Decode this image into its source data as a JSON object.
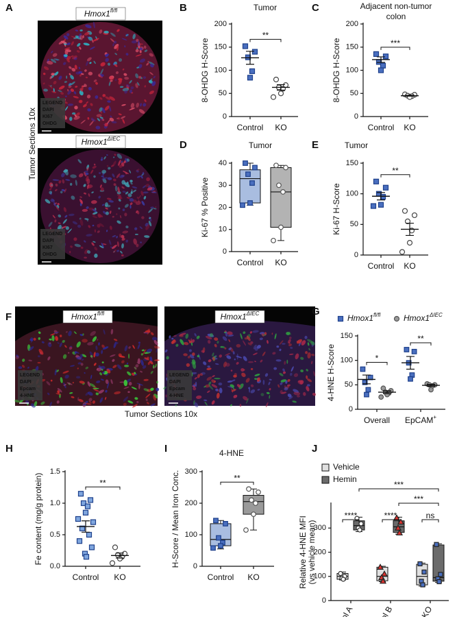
{
  "images": [
    {
      "panel": "A",
      "caption": "Tumor Sections 10x",
      "sections": [
        {
          "genotype": {
            "base": "Hmox1",
            "sup": "fl/fl"
          },
          "legend": [
            "LEGEND",
            "DAPI",
            "KI67",
            "OHDG"
          ],
          "legend_colors": [
            "#ffffff",
            "#3355ff",
            "#33dddd",
            "#ff3333"
          ]
        },
        {
          "genotype": {
            "base": "Hmox1",
            "sup": "ΔIEC"
          },
          "legend": [
            "LEGEND",
            "DAPI",
            "KI67",
            "OHDG"
          ],
          "legend_colors": [
            "#ffffff",
            "#3355ff",
            "#33dddd",
            "#ff3333"
          ]
        }
      ]
    },
    {
      "panel": "F",
      "caption": "Tumor Sections 10x",
      "sections": [
        {
          "genotype": {
            "base": "Hmox1",
            "sup": "fl/fl"
          },
          "legend": [
            "LEGEND",
            "DAPI",
            "Epcam",
            "4-HNE"
          ],
          "legend_colors": [
            "#ffffff",
            "#3355ff",
            "#33ee33",
            "#ff3333"
          ]
        },
        {
          "genotype": {
            "base": "Hmox1",
            "sup": "ΔIEC"
          },
          "legend": [
            "LEGEND",
            "DAPI",
            "Epcam",
            "4-HNE"
          ],
          "legend_colors": [
            "#ffffff",
            "#3355ff",
            "#33ee33",
            "#ff3333"
          ]
        }
      ]
    }
  ],
  "chart_data": [
    {
      "type": "dot",
      "panel": "B",
      "title": "Tumor",
      "ylabel": "8-OHDG H-Score",
      "categories": [
        "Control",
        "KO"
      ],
      "colors": [
        "#4a6fbf",
        "#9a9a9a"
      ],
      "markers": [
        "square",
        "circle"
      ],
      "points": [
        [
          152,
          140,
          128,
          98,
          84
        ],
        [
          80,
          68,
          63,
          60,
          50,
          42
        ]
      ],
      "means": [
        127,
        63
      ],
      "errors": [
        14,
        6
      ],
      "ylim": [
        0,
        200
      ],
      "yticks": [
        0,
        50,
        100,
        150,
        200
      ],
      "annotations": [
        {
          "text": "**",
          "between": [
            0,
            1
          ]
        }
      ]
    },
    {
      "type": "dot",
      "panel": "C",
      "title": [
        "Adjacent non-tumor",
        "colon"
      ],
      "ylabel": "8-OHDG H-Score",
      "categories": [
        "Control",
        "KO"
      ],
      "colors": [
        "#4a6fbf",
        "#9a9a9a"
      ],
      "markers": [
        "square",
        "circle"
      ],
      "points": [
        [
          135,
          130,
          118,
          110,
          100
        ],
        [
          48,
          47,
          45,
          44,
          42
        ]
      ],
      "means": [
        123,
        45
      ],
      "errors": [
        6,
        1
      ],
      "ylim": [
        0,
        200
      ],
      "yticks": [
        0,
        50,
        100,
        150,
        200
      ],
      "annotations": [
        {
          "text": "***",
          "between": [
            0,
            1
          ]
        }
      ]
    },
    {
      "type": "box",
      "panel": "D",
      "title": "Tumor",
      "ylabel": "Ki-67 % Positive",
      "categories": [
        "Control",
        "KO"
      ],
      "colors": [
        "#a9bde0",
        "#b3b3b3"
      ],
      "point_colors": [
        "#4a6fbf",
        "#9a9a9a"
      ],
      "markers": [
        "square",
        "circle"
      ],
      "boxes": [
        {
          "min": 21,
          "q1": 22,
          "median": 33,
          "q3": 37,
          "max": 40
        },
        {
          "min": 5,
          "q1": 11,
          "median": 27,
          "q3": 38,
          "max": 39
        }
      ],
      "points": [
        [
          40,
          38,
          35,
          31,
          22,
          21
        ],
        [
          39,
          38,
          30,
          27,
          11,
          5
        ]
      ],
      "ylim": [
        0,
        40
      ],
      "yticks": [
        0,
        10,
        20,
        30,
        40
      ],
      "annotations": []
    },
    {
      "type": "dot",
      "panel": "E",
      "title": "Tumor",
      "ylabel": "Ki-67 H-Score",
      "categories": [
        "Control",
        "KO"
      ],
      "colors": [
        "#4a6fbf",
        "#9a9a9a"
      ],
      "markers": [
        "square",
        "circle"
      ],
      "points": [
        [
          120,
          110,
          100,
          95,
          82,
          80
        ],
        [
          72,
          65,
          55,
          40,
          20,
          5
        ]
      ],
      "means": [
        96,
        42
      ],
      "errors": [
        6,
        10
      ],
      "ylim": [
        0,
        150
      ],
      "yticks": [
        0,
        50,
        100,
        150
      ],
      "annotations": [
        {
          "text": "**",
          "between": [
            0,
            1
          ]
        }
      ]
    },
    {
      "type": "grouped_dot",
      "panel": "G",
      "ylabel": "4-HNE H-Score",
      "categories": [
        "Overall",
        {
          "label": "EpCAM",
          "sup": "+"
        }
      ],
      "series": [
        {
          "name": {
            "base": "Hmox1",
            "sup": "fl/fl"
          },
          "color": "#4a6fbf",
          "marker": "square",
          "points": [
            [
              82,
              65,
              55,
              40,
              30
            ],
            [
              122,
              118,
              95,
              70,
              62
            ]
          ],
          "means": [
            61,
            95
          ],
          "errors": [
            9,
            13
          ]
        },
        {
          "name": {
            "base": "Hmox1",
            "sup": "ΔIEC"
          },
          "color": "#9a9a9a",
          "marker": "circle",
          "points": [
            [
              43,
              38,
              35,
              33,
              30,
              25
            ],
            [
              52,
              50,
              50,
              48,
              40
            ]
          ],
          "means": [
            35,
            49
          ],
          "errors": [
            3,
            2
          ]
        }
      ],
      "ylim": [
        0,
        150
      ],
      "yticks": [
        0,
        50,
        100,
        150
      ],
      "annotations": [
        {
          "text": "*",
          "between": [
            [
              0,
              0
            ],
            [
              0,
              1
            ]
          ]
        },
        {
          "text": "**",
          "between": [
            [
              1,
              0
            ],
            [
              1,
              1
            ]
          ]
        }
      ]
    },
    {
      "type": "dot",
      "panel": "H",
      "ylabel": "Fe content (mg/g protein)",
      "categories": [
        "Control",
        "KO"
      ],
      "colors": [
        "#7fa6de",
        "#9a9a9a"
      ],
      "markers": [
        "square",
        "circle"
      ],
      "points": [
        [
          1.15,
          1.05,
          1.0,
          0.95,
          0.85,
          0.75,
          0.7,
          0.6,
          0.5,
          0.4,
          0.3,
          0.2,
          0.15
        ],
        [
          0.3,
          0.2,
          0.18,
          0.15,
          0.12,
          0.05
        ]
      ],
      "means": [
        0.63,
        0.17
      ],
      "errors": [
        0.09,
        0.04
      ],
      "ylim": [
        0,
        1.5
      ],
      "yticks": [
        {
          "value": 0,
          "label": "0.0"
        },
        {
          "value": 0.5,
          "label": "0.5"
        },
        {
          "value": 1,
          "label": "1.0"
        },
        {
          "value": 1.5,
          "label": "1.5"
        }
      ],
      "annotations": [
        {
          "text": "**",
          "between": [
            0,
            1
          ]
        }
      ]
    },
    {
      "type": "box",
      "panel": "I",
      "title": "4-HNE",
      "ylabel": "H-Score / Mean Iron Conc.",
      "categories": [
        "Control",
        "KO"
      ],
      "colors": [
        "#a9bde0",
        "#9a9a9a"
      ],
      "point_colors": [
        "#4a6fbf",
        "#bbbbbb"
      ],
      "markers": [
        "square",
        "circle"
      ],
      "boxes": [
        {
          "min": 55,
          "q1": 65,
          "median": 85,
          "q3": 135,
          "max": 145
        },
        {
          "min": 115,
          "q1": 165,
          "median": 205,
          "q3": 225,
          "max": 245
        }
      ],
      "points": [
        [
          145,
          135,
          90,
          75,
          65,
          58
        ],
        [
          245,
          235,
          210,
          200,
          165,
          115
        ]
      ],
      "ylim": [
        0,
        300
      ],
      "yticks": [
        0,
        100,
        200,
        300
      ],
      "annotations": [
        {
          "text": "**",
          "between": [
            0,
            1
          ]
        }
      ]
    },
    {
      "type": "grouped_box",
      "panel": "J",
      "ylabel": [
        "Relative 4-HNE MFI",
        "(vs vehicle mean)"
      ],
      "categories": [
        "Control A",
        "Control B",
        "KO"
      ],
      "point_markers": [
        "circle",
        "triangle",
        "square"
      ],
      "point_colors": [
        "#ffffff",
        "#d9332f",
        "#4a6fbf"
      ],
      "series": [
        {
          "name": "Vehicle",
          "color": "#e0e0e0",
          "boxes": [
            {
              "min": 85,
              "q1": 88,
              "median": 100,
              "q3": 112,
              "max": 118
            },
            {
              "min": 78,
              "q1": 82,
              "median": 100,
              "q3": 138,
              "max": 142
            },
            {
              "min": 60,
              "q1": 65,
              "median": 100,
              "q3": 150,
              "max": 155
            }
          ],
          "points": [
            [
              112,
              100,
              92,
              88
            ],
            [
              138,
              110,
              95,
              80
            ],
            [
              152,
              118,
              80,
              65
            ]
          ]
        },
        {
          "name": "Hemin",
          "color": "#6b6b6b",
          "boxes": [
            {
              "min": 285,
              "q1": 292,
              "median": 310,
              "q3": 330,
              "max": 345
            },
            {
              "min": 275,
              "q1": 282,
              "median": 305,
              "q3": 330,
              "max": 345
            },
            {
              "min": 75,
              "q1": 80,
              "median": 95,
              "q3": 230,
              "max": 235
            }
          ],
          "points": [
            [
              340,
              318,
              300,
              292
            ],
            [
              342,
              325,
              300,
              280
            ],
            [
              232,
              108,
              90,
              78
            ]
          ]
        }
      ],
      "ylim": [
        0,
        400
      ],
      "yticks": [
        0,
        100,
        200,
        300
      ],
      "annotations": [
        {
          "text": "****",
          "between": [
            [
              0,
              0
            ],
            [
              0,
              1
            ]
          ]
        },
        {
          "text": "****",
          "between": [
            [
              1,
              0
            ],
            [
              1,
              1
            ]
          ]
        },
        {
          "text": "ns",
          "between": [
            [
              2,
              0
            ],
            [
              2,
              1
            ]
          ]
        },
        {
          "text": "***",
          "between": [
            [
              0,
              1
            ],
            [
              2,
              1
            ]
          ]
        },
        {
          "text": "***",
          "between": [
            [
              1,
              1
            ],
            [
              2,
              1
            ]
          ]
        }
      ]
    }
  ]
}
